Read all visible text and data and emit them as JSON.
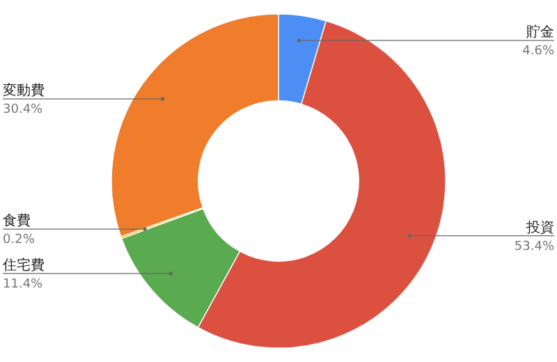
{
  "chart_data": {
    "type": "donut",
    "categories": [
      "貯金",
      "投資",
      "住宅費",
      "食費",
      "変動費"
    ],
    "values": [
      4.6,
      53.4,
      11.4,
      0.2,
      30.4
    ],
    "value_labels": [
      "4.6%",
      "53.4%",
      "11.4%",
      "0.2%",
      "30.4%"
    ],
    "colors": [
      "#4d8ef5",
      "#dc5040",
      "#5aaa50",
      "#f5b800",
      "#ef7d2b"
    ]
  }
}
